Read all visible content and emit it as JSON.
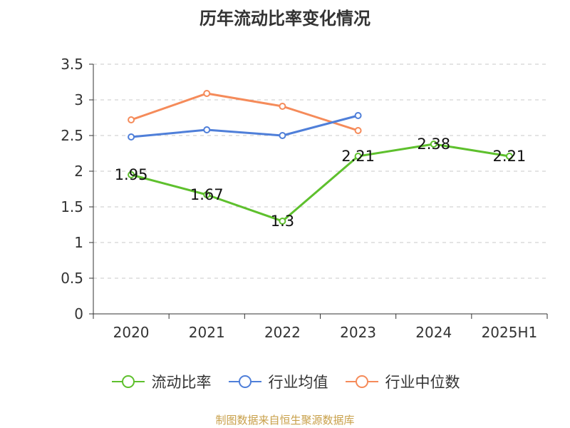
{
  "chart_data": {
    "type": "line",
    "title": "历年流动比率变化情况",
    "categories": [
      "2020",
      "2021",
      "2022",
      "2023",
      "2024",
      "2025H1"
    ],
    "ylim": [
      0,
      3.5
    ],
    "yticks": [
      "0",
      "0.5",
      "1",
      "1.5",
      "2",
      "2.5",
      "3",
      "3.5"
    ],
    "grid": true,
    "legend_position": "bottom",
    "series": [
      {
        "name": "流动比率",
        "color": "#5ec02d",
        "values": [
          1.95,
          1.67,
          1.3,
          2.21,
          2.38,
          2.21
        ],
        "labels": [
          "1.95",
          "1.67",
          "1.3",
          "2.21",
          "2.38",
          "2.21"
        ]
      },
      {
        "name": "行业均值",
        "color": "#4f7fd9",
        "values": [
          2.48,
          2.58,
          2.5,
          2.78,
          null,
          null
        ]
      },
      {
        "name": "行业中位数",
        "color": "#f58b5a",
        "values": [
          2.72,
          3.09,
          2.91,
          2.57,
          null,
          null
        ]
      }
    ]
  },
  "source": "制图数据来自恒生聚源数据库"
}
